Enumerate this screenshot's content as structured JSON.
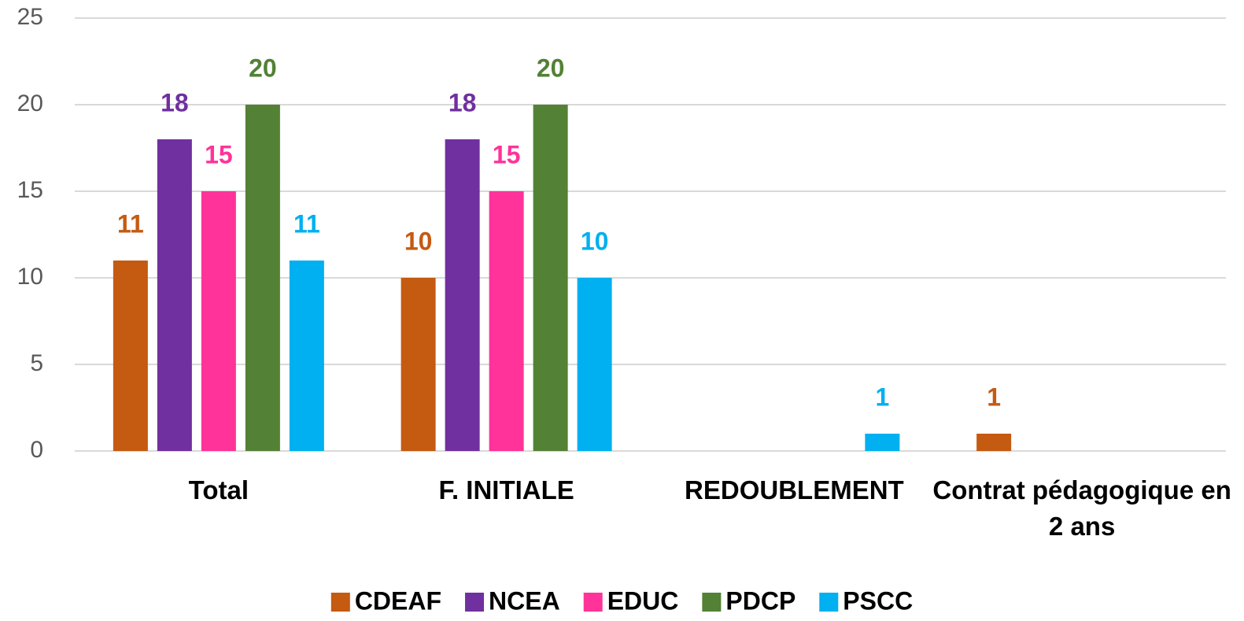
{
  "chart_data": {
    "type": "bar",
    "categories": [
      "Total",
      "F. INITIALE",
      "REDOUBLEMENT",
      "Contrat pédagogique en 2 ans"
    ],
    "series": [
      {
        "name": "CDEAF",
        "color": "#c55a11",
        "values": [
          11,
          10,
          null,
          1
        ]
      },
      {
        "name": "NCEA",
        "color": "#7030a0",
        "values": [
          18,
          18,
          null,
          null
        ]
      },
      {
        "name": "EDUC",
        "color": "#ff3399",
        "values": [
          15,
          15,
          null,
          null
        ]
      },
      {
        "name": "PDCP",
        "color": "#538135",
        "values": [
          20,
          20,
          null,
          null
        ]
      },
      {
        "name": "PSCC",
        "color": "#00b0f0",
        "values": [
          11,
          10,
          1,
          null
        ]
      }
    ],
    "ylim": [
      0,
      25
    ],
    "yticks": [
      0,
      5,
      10,
      15,
      20,
      25
    ],
    "grid": true,
    "legend": "bottom"
  }
}
